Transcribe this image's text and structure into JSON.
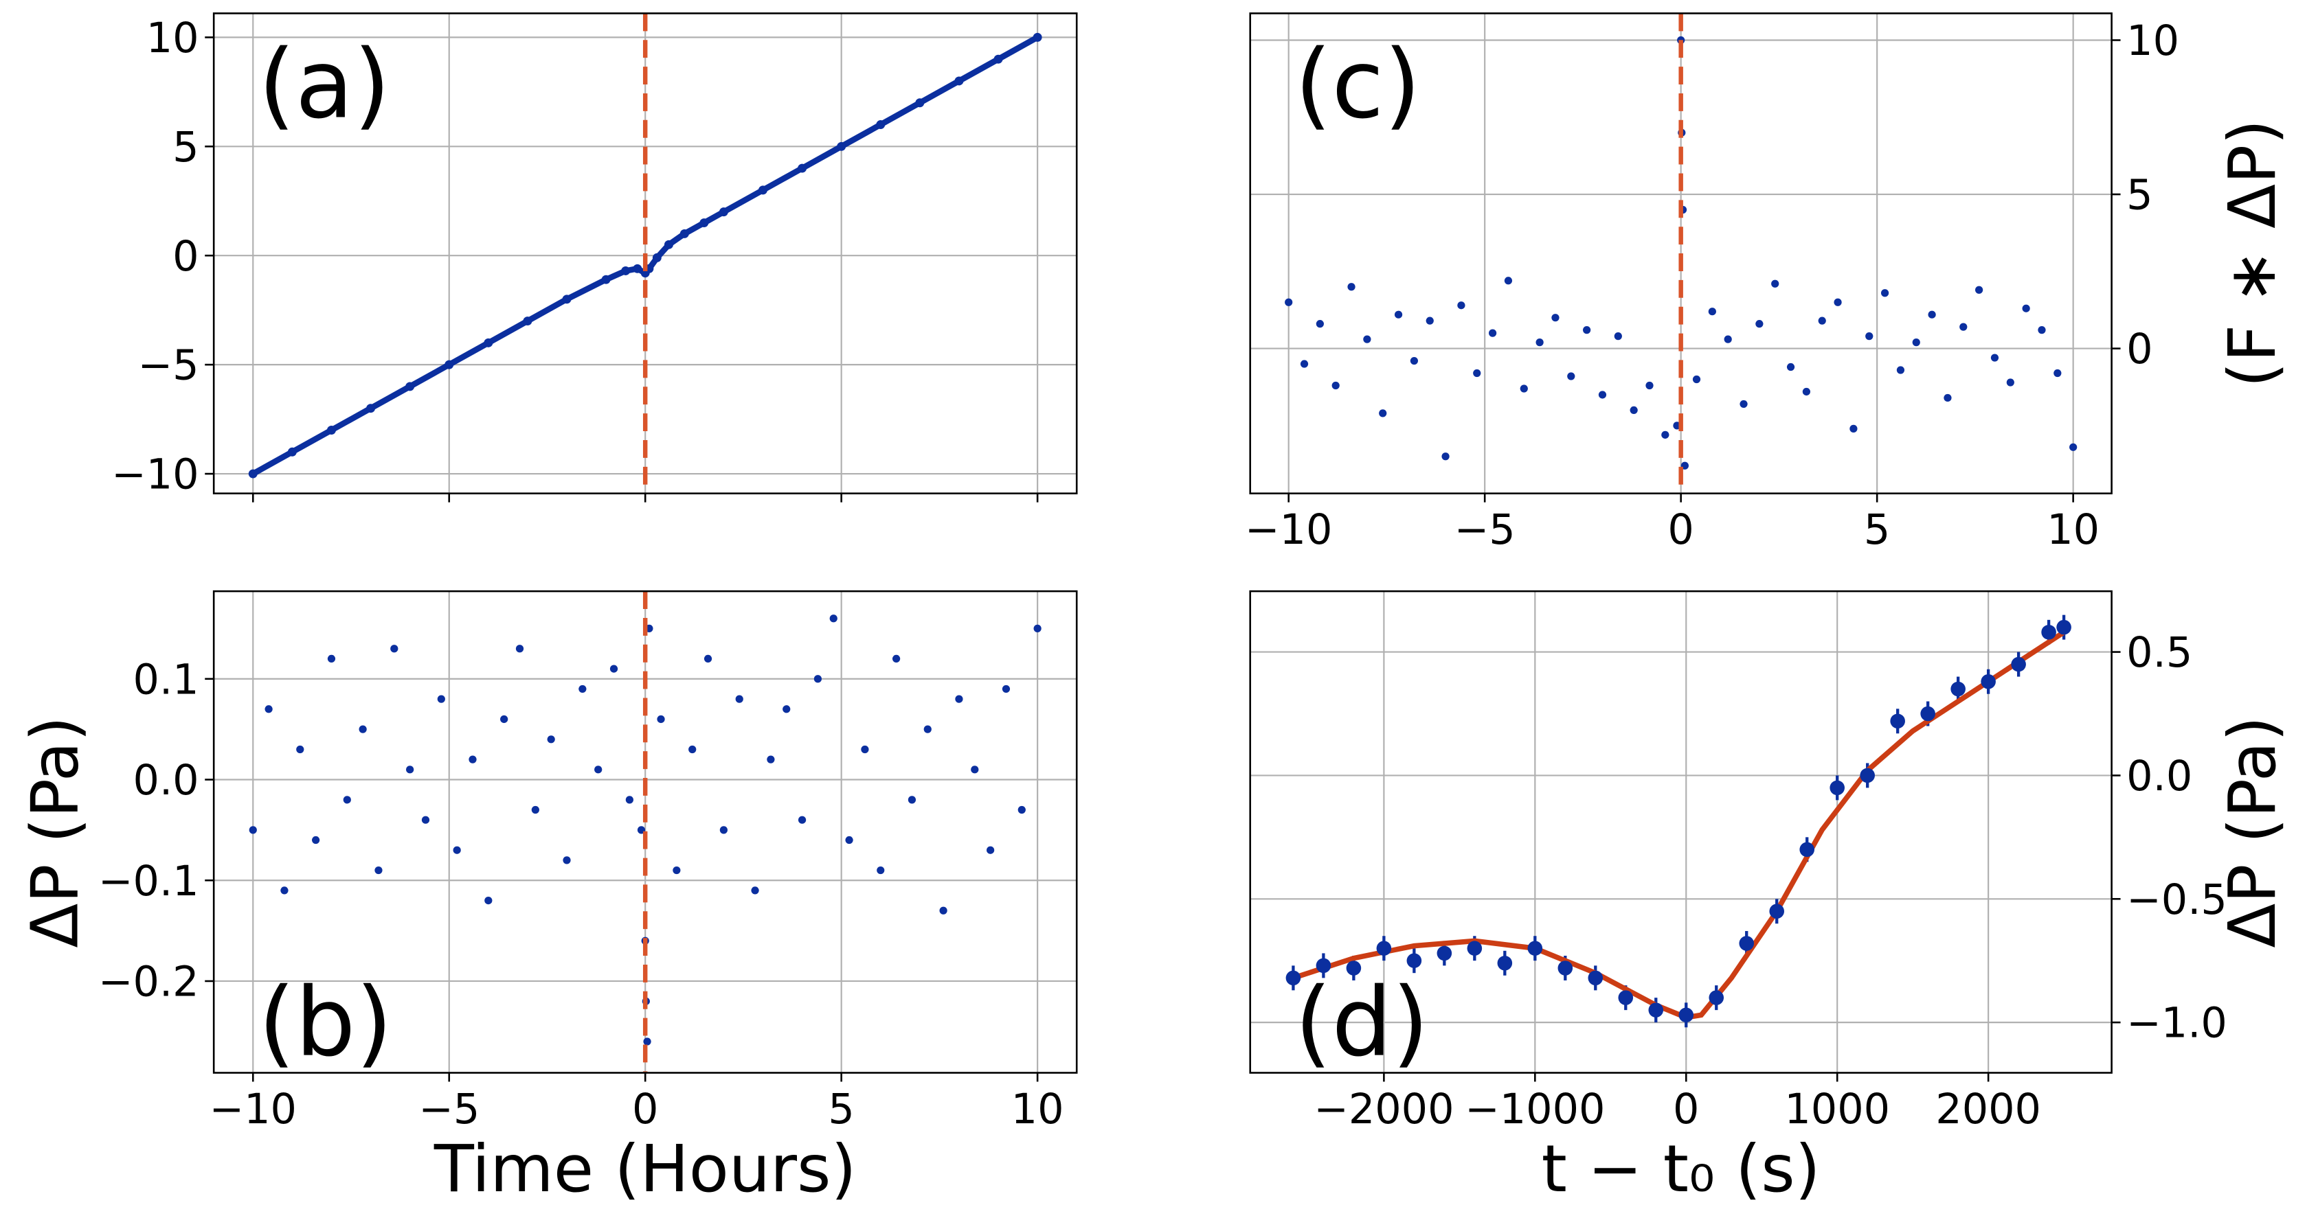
{
  "chart_data": [
    {
      "type": "line",
      "annotation": "(a)",
      "color": "#0b2f9f",
      "axis_side": "left",
      "xtick_labels": false,
      "grid": true,
      "vline": {
        "x": 0,
        "color": "#d9542a"
      },
      "x": [
        -10,
        -9,
        -8,
        -7,
        -6,
        -5,
        -4,
        -3,
        -2,
        -1,
        -0.5,
        -0.2,
        0,
        0.1,
        0.3,
        0.6,
        1,
        1.5,
        2,
        3,
        4,
        5,
        6,
        7,
        8,
        9,
        10
      ],
      "values": [
        -10,
        -9.0,
        -8.0,
        -7.0,
        -6.0,
        -5.0,
        -4.0,
        -3.0,
        -2.0,
        -1.1,
        -0.7,
        -0.6,
        -0.8,
        -0.6,
        -0.1,
        0.5,
        1.0,
        1.5,
        2.0,
        3.0,
        4.0,
        5.0,
        6.0,
        7.0,
        8.0,
        9.0,
        10.0
      ],
      "xlim": [
        -11,
        11
      ],
      "ylim": [
        -10.9,
        11.1
      ],
      "xticks": [
        -10,
        -5,
        0,
        5,
        10
      ],
      "yticks": [
        {
          "value": -10,
          "label": "−10"
        },
        {
          "value": -5,
          "label": "−5"
        },
        0,
        5,
        10
      ]
    },
    {
      "type": "scatter",
      "annotation": "(b)",
      "color": "#0b2f9f",
      "axis_side": "left",
      "xtick_labels": true,
      "grid": true,
      "x_label": "Time (Hours)",
      "y_label": "ΔP (Pa)",
      "vline": {
        "x": 0,
        "color": "#d9542a"
      },
      "x": [
        -10,
        -9.6,
        -9.2,
        -8.8,
        -8.4,
        -8,
        -7.6,
        -7.2,
        -6.8,
        -6.4,
        -6,
        -5.6,
        -5.2,
        -4.8,
        -4.4,
        -4,
        -3.6,
        -3.2,
        -2.8,
        -2.4,
        -2,
        -1.6,
        -1.2,
        -0.8,
        -0.4,
        -0.1,
        0,
        0.02,
        0.05,
        0.1,
        0.4,
        0.8,
        1.2,
        1.6,
        2,
        2.4,
        2.8,
        3.2,
        3.6,
        4,
        4.4,
        4.8,
        5.2,
        5.6,
        6,
        6.4,
        6.8,
        7.2,
        7.6,
        8,
        8.4,
        8.8,
        9.2,
        9.6,
        10
      ],
      "values": [
        -0.05,
        0.07,
        -0.11,
        0.03,
        -0.06,
        0.12,
        -0.02,
        0.05,
        -0.09,
        0.13,
        0.01,
        -0.04,
        0.08,
        -0.07,
        0.02,
        -0.12,
        0.06,
        0.13,
        -0.03,
        0.04,
        -0.08,
        0.09,
        0.01,
        0.11,
        -0.02,
        -0.05,
        -0.16,
        -0.22,
        -0.26,
        0.15,
        0.06,
        -0.09,
        0.03,
        0.12,
        -0.05,
        0.08,
        -0.11,
        0.02,
        0.07,
        -0.04,
        0.1,
        0.16,
        -0.06,
        0.03,
        -0.09,
        0.12,
        -0.02,
        0.05,
        -0.13,
        0.08,
        0.01,
        -0.07,
        0.09,
        -0.03,
        0.15
      ],
      "xlim": [
        -11,
        11
      ],
      "ylim": [
        -0.291,
        0.187
      ],
      "xticks": [
        {
          "value": -10,
          "label": "−10"
        },
        {
          "value": -5,
          "label": "−5"
        },
        0,
        5,
        10
      ],
      "yticks": [
        {
          "value": -0.2,
          "label": "−0.2"
        },
        {
          "value": -0.1,
          "label": "−0.1"
        },
        {
          "value": 0,
          "label": "0.0"
        },
        0.1
      ]
    },
    {
      "type": "scatter",
      "annotation": "(c)",
      "color": "#0b2f9f",
      "axis_side": "right",
      "xtick_labels": true,
      "grid": true,
      "y_label": "(F ∗ ΔP)",
      "vline": {
        "x": 0,
        "color": "#d9542a"
      },
      "x": [
        -10,
        -9.6,
        -9.2,
        -8.8,
        -8.4,
        -8,
        -7.6,
        -7.2,
        -6.8,
        -6.4,
        -6,
        -5.6,
        -5.2,
        -4.8,
        -4.4,
        -4,
        -3.6,
        -3.2,
        -2.8,
        -2.4,
        -2,
        -1.6,
        -1.2,
        -0.8,
        -0.4,
        -0.1,
        0,
        0.02,
        0.05,
        0.1,
        0.4,
        0.8,
        1.2,
        1.6,
        2,
        2.4,
        2.8,
        3.2,
        3.6,
        4,
        4.4,
        4.8,
        5.2,
        5.6,
        6,
        6.4,
        6.8,
        7.2,
        7.6,
        8,
        8.4,
        8.8,
        9.2,
        9.6,
        10
      ],
      "values": [
        1.5,
        -0.5,
        0.8,
        -1.2,
        2.0,
        0.3,
        -2.1,
        1.1,
        -0.4,
        0.9,
        -3.5,
        1.4,
        -0.8,
        0.5,
        2.2,
        -1.3,
        0.2,
        1.0,
        -0.9,
        0.6,
        -1.5,
        0.4,
        -2.0,
        -1.2,
        -2.8,
        -2.5,
        10.0,
        7.0,
        4.5,
        -3.8,
        -1.0,
        1.2,
        0.3,
        -1.8,
        0.8,
        2.1,
        -0.6,
        -1.4,
        0.9,
        1.5,
        -2.6,
        0.4,
        1.8,
        -0.7,
        0.2,
        1.1,
        -1.6,
        0.7,
        1.9,
        -0.3,
        -1.1,
        1.3,
        0.6,
        -0.8,
        -3.2
      ],
      "xlim": [
        -10.98,
        10.98
      ],
      "ylim": [
        -4.7,
        10.87
      ],
      "xticks": [
        {
          "value": -10,
          "label": "−10"
        },
        {
          "value": -5,
          "label": "−5"
        },
        0,
        5,
        10
      ],
      "yticks": [
        0,
        5,
        10
      ]
    },
    {
      "type": "errorbar",
      "annotation": "(d)",
      "color": "#0b2f9f",
      "axis_side": "right",
      "xtick_labels": true,
      "grid": true,
      "x_label": "t − t₀ (s)",
      "y_label": "ΔP (Pa)",
      "x": [
        -2600,
        -2400,
        -2200,
        -2000,
        -1800,
        -1600,
        -1400,
        -1200,
        -1000,
        -800,
        -600,
        -400,
        -200,
        0,
        200,
        400,
        600,
        800,
        1000,
        1200,
        1400,
        1600,
        1800,
        2000,
        2200,
        2400,
        2500
      ],
      "values": [
        -0.82,
        -0.77,
        -0.78,
        -0.7,
        -0.75,
        -0.72,
        -0.7,
        -0.76,
        -0.7,
        -0.78,
        -0.82,
        -0.9,
        -0.95,
        -0.97,
        -0.9,
        -0.68,
        -0.55,
        -0.3,
        -0.05,
        0.0,
        0.22,
        0.25,
        0.35,
        0.38,
        0.45,
        0.58,
        0.6
      ],
      "errors": [
        0.05,
        0.05,
        0.05,
        0.05,
        0.05,
        0.05,
        0.05,
        0.05,
        0.05,
        0.05,
        0.05,
        0.05,
        0.05,
        0.05,
        0.05,
        0.05,
        0.05,
        0.05,
        0.05,
        0.05,
        0.05,
        0.05,
        0.05,
        0.05,
        0.05,
        0.05,
        0.05
      ],
      "fit": {
        "color": "#cc3d14",
        "x": [
          -2600,
          -2200,
          -1800,
          -1400,
          -1000,
          -600,
          -200,
          0,
          100,
          300,
          600,
          900,
          1200,
          1500,
          1800,
          2100,
          2500
        ],
        "values": [
          -0.82,
          -0.74,
          -0.69,
          -0.67,
          -0.7,
          -0.8,
          -0.93,
          -0.98,
          -0.97,
          -0.82,
          -0.55,
          -0.22,
          0.02,
          0.18,
          0.3,
          0.42,
          0.58
        ]
      },
      "xlim": [
        -2885,
        2816
      ],
      "ylim": [
        -1.204,
        0.746
      ],
      "xticks": [
        {
          "value": -2000,
          "label": "−2000"
        },
        {
          "value": -1000,
          "label": "−1000"
        },
        0,
        1000,
        2000
      ],
      "yticks": [
        {
          "value": -1.0,
          "label": "−1.0"
        },
        {
          "value": -0.5,
          "label": "−0.5"
        },
        {
          "value": 0,
          "label": "0.0"
        },
        0.5
      ]
    }
  ]
}
